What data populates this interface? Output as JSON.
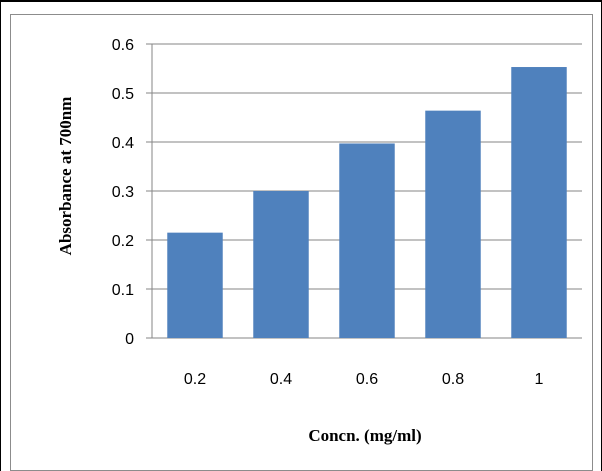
{
  "chart_data": {
    "type": "bar",
    "categories": [
      "0.2",
      "0.4",
      "0.6",
      "0.8",
      "1"
    ],
    "values": [
      0.215,
      0.3,
      0.397,
      0.464,
      0.553
    ],
    "xlabel": "Concn. (mg/ml)",
    "ylabel": "Absorbance at 700nm",
    "ylim": [
      0,
      0.6
    ],
    "yticks": [
      "0",
      "0.1",
      "0.2",
      "0.3",
      "0.4",
      "0.5",
      "0.6"
    ],
    "grid": true,
    "legend": false,
    "bar_color": "#4f81bd",
    "grid_color": "#868686"
  }
}
